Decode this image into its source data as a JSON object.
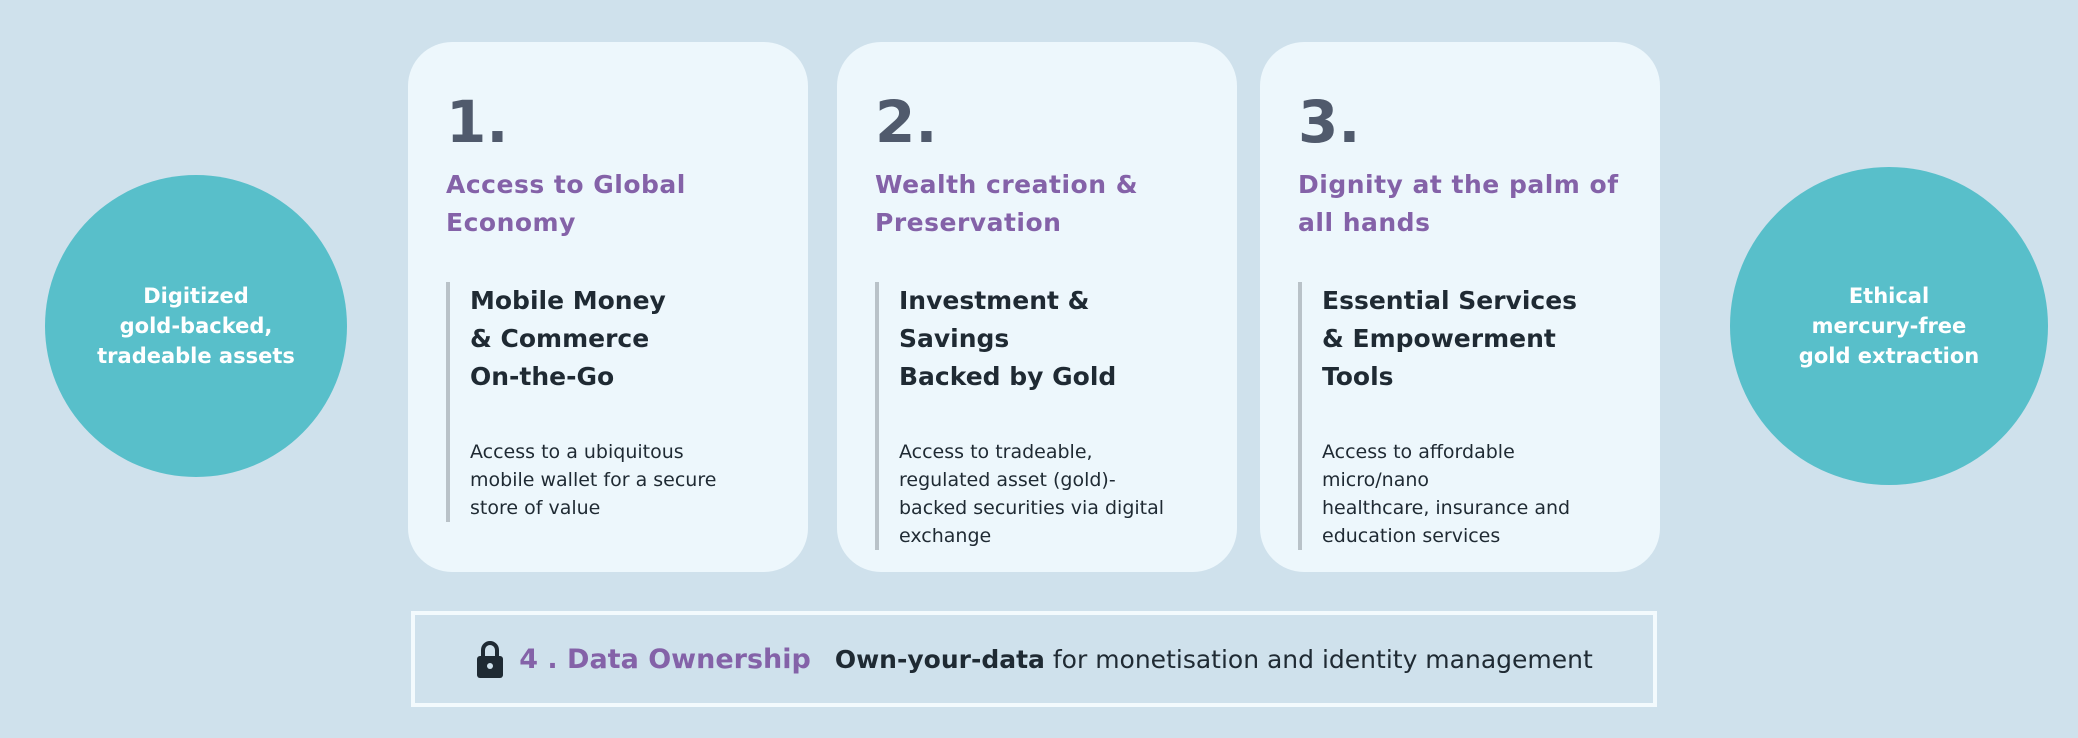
{
  "circles": {
    "left": "Digitized\ngold-backed,\ntradeable assets",
    "right": "Ethical\nmercury-free\ngold extraction"
  },
  "cards": [
    {
      "number": "1.",
      "title": "Access to Global\nEconomy",
      "subtitle": "Mobile Money\n& Commerce\nOn-the-Go",
      "description": "Access to a ubiquitous\nmobile wallet for a secure\nstore of value"
    },
    {
      "number": "2.",
      "title": "Wealth creation &\nPreservation",
      "subtitle": "Investment & Savings\nBacked by Gold",
      "description": "Access to tradeable,\nregulated asset (gold)-\nbacked securities via digital\nexchange"
    },
    {
      "number": "3.",
      "title": "Dignity at the palm of\nall hands",
      "subtitle": "Essential Services\n& Empowerment Tools",
      "description": "Access to affordable micro/nano\nhealthcare, insurance and\neducation services"
    }
  ],
  "data_ownership": {
    "icon": "lock-icon",
    "title": "4 . Data Ownership",
    "bold_text": "Own-your-data",
    "text": " for monetisation and identity management"
  },
  "colors": {
    "background": "#cfe1ec",
    "card": "#edf7fc",
    "teal": "#58bfca",
    "purple": "#8462a8",
    "dark": "#1f2a33"
  }
}
